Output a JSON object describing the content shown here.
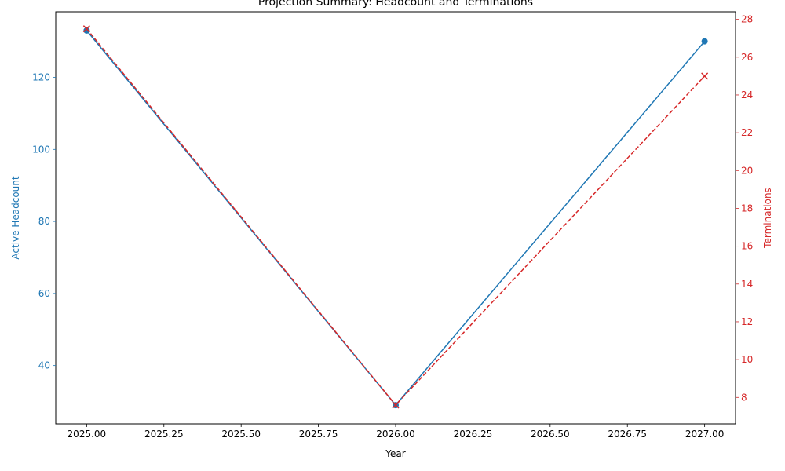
{
  "chart_data": {
    "type": "line",
    "title": "Projection Summary: Headcount and Terminations",
    "xlabel": "Year",
    "x": [
      2025,
      2026,
      2027
    ],
    "xlim": [
      2024.9,
      2027.1
    ],
    "xticks": [
      2025.0,
      2025.25,
      2025.5,
      2025.75,
      2026.0,
      2026.25,
      2026.5,
      2026.75,
      2027.0
    ],
    "xtick_labels": [
      "2025.00",
      "2025.25",
      "2025.50",
      "2025.75",
      "2026.00",
      "2026.25",
      "2026.50",
      "2026.75",
      "2027.00"
    ],
    "grid": false,
    "series": [
      {
        "name": "Active Headcount",
        "axis": "left",
        "values": [
          133,
          29,
          130
        ],
        "color": "#1f77b4",
        "line_style": "solid",
        "marker": "circle"
      },
      {
        "name": "Terminations",
        "axis": "right",
        "values": [
          27.5,
          7.6,
          25
        ],
        "color": "#d62728",
        "line_style": "dashed",
        "marker": "x"
      }
    ],
    "y_left": {
      "label": "Active Headcount",
      "lim": [
        23.8,
        138.2
      ],
      "ticks": [
        40,
        60,
        80,
        100,
        120
      ],
      "color": "#1f77b4"
    },
    "y_right": {
      "label": "Terminations",
      "lim": [
        6.6,
        28.4
      ],
      "ticks": [
        8,
        10,
        12,
        14,
        16,
        18,
        20,
        22,
        24,
        26,
        28
      ],
      "color": "#d62728"
    }
  }
}
